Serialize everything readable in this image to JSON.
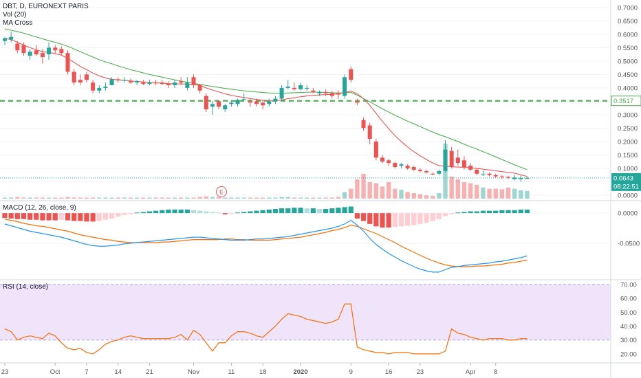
{
  "header": {
    "symbol_line": "DBT, D, EURONEXT PARIS",
    "vol_label": "Vol (20)",
    "ma_label": "MA Cross"
  },
  "price_badges": {
    "level": "0.3517",
    "last": "0.0643",
    "countdown": "08:22:51"
  },
  "event_marker": "E",
  "macd_label": "MACD (12, 26, close, 9)",
  "rsi_label": "RSI (14, close)",
  "colors": {
    "up": "#26a69a",
    "down": "#ef5350",
    "ma_fast": "#ef5350",
    "ma_slow": "#4caf50",
    "macd": "#2196f3",
    "signal": "#ff6d00",
    "rsi": "#ff6d00",
    "rsi_band": "#e8d9f7",
    "level_line": "#4caf50"
  },
  "chart_data": [
    {
      "type": "candlestick",
      "title": "DBT, D, EURONEXT PARIS",
      "y_axis_ticks": [
        "0.7000",
        "0.6500",
        "0.6000",
        "0.5500",
        "0.5000",
        "0.4500",
        "0.4000",
        "0.3500",
        "0.3000",
        "0.2500",
        "0.2000",
        "0.1500",
        "0.1000",
        "0.0500",
        "0.0000"
      ],
      "ylim": [
        0,
        0.72
      ],
      "x_ticks": [
        "23",
        "Oct",
        "7",
        "14",
        "21",
        "Nov",
        "11",
        "18",
        "2020",
        "9",
        "16",
        "23",
        "Apr",
        "8"
      ],
      "ohlc": [
        [
          0.575,
          0.59,
          0.56,
          0.585
        ],
        [
          0.58,
          0.61,
          0.57,
          0.59
        ],
        [
          0.565,
          0.575,
          0.53,
          0.54
        ],
        [
          0.56,
          0.57,
          0.52,
          0.53
        ],
        [
          0.52,
          0.545,
          0.505,
          0.535
        ],
        [
          0.54,
          0.56,
          0.52,
          0.525
        ],
        [
          0.53,
          0.545,
          0.49,
          0.515
        ],
        [
          0.525,
          0.57,
          0.505,
          0.55
        ],
        [
          0.55,
          0.56,
          0.53,
          0.54
        ],
        [
          0.545,
          0.555,
          0.52,
          0.53
        ],
        [
          0.53,
          0.54,
          0.45,
          0.46
        ],
        [
          0.46,
          0.47,
          0.41,
          0.42
        ],
        [
          0.43,
          0.45,
          0.41,
          0.42
        ],
        [
          0.45,
          0.46,
          0.42,
          0.43
        ],
        [
          0.42,
          0.43,
          0.38,
          0.39
        ],
        [
          0.39,
          0.41,
          0.38,
          0.4
        ],
        [
          0.4,
          0.42,
          0.39,
          0.405
        ],
        [
          0.41,
          0.44,
          0.41,
          0.432
        ],
        [
          0.432,
          0.44,
          0.42,
          0.428
        ],
        [
          0.43,
          0.44,
          0.42,
          0.43
        ],
        [
          0.425,
          0.435,
          0.415,
          0.42
        ],
        [
          0.42,
          0.43,
          0.41,
          0.425
        ],
        [
          0.42,
          0.43,
          0.41,
          0.415
        ],
        [
          0.415,
          0.43,
          0.41,
          0.42
        ],
        [
          0.42,
          0.43,
          0.41,
          0.418
        ],
        [
          0.42,
          0.43,
          0.41,
          0.415
        ],
        [
          0.415,
          0.425,
          0.4,
          0.41
        ],
        [
          0.41,
          0.43,
          0.4,
          0.42
        ],
        [
          0.425,
          0.44,
          0.41,
          0.42
        ],
        [
          0.4,
          0.44,
          0.39,
          0.42
        ],
        [
          0.44,
          0.45,
          0.4,
          0.41
        ],
        [
          0.41,
          0.415,
          0.38,
          0.39
        ],
        [
          0.37,
          0.38,
          0.31,
          0.32
        ],
        [
          0.33,
          0.35,
          0.3,
          0.34
        ],
        [
          0.35,
          0.355,
          0.32,
          0.33
        ],
        [
          0.32,
          0.34,
          0.31,
          0.335
        ],
        [
          0.34,
          0.35,
          0.33,
          0.345
        ],
        [
          0.34,
          0.36,
          0.33,
          0.355
        ],
        [
          0.355,
          0.38,
          0.35,
          0.358
        ],
        [
          0.35,
          0.36,
          0.33,
          0.345
        ],
        [
          0.35,
          0.36,
          0.33,
          0.34
        ],
        [
          0.345,
          0.355,
          0.32,
          0.335
        ],
        [
          0.34,
          0.36,
          0.33,
          0.35
        ],
        [
          0.35,
          0.37,
          0.34,
          0.36
        ],
        [
          0.36,
          0.41,
          0.35,
          0.4
        ],
        [
          0.4,
          0.43,
          0.395,
          0.405
        ],
        [
          0.4,
          0.42,
          0.39,
          0.395
        ],
        [
          0.395,
          0.42,
          0.39,
          0.41
        ],
        [
          0.4,
          0.41,
          0.39,
          0.4
        ],
        [
          0.39,
          0.4,
          0.38,
          0.385
        ],
        [
          0.38,
          0.39,
          0.37,
          0.385
        ],
        [
          0.385,
          0.395,
          0.37,
          0.38
        ],
        [
          0.38,
          0.39,
          0.36,
          0.37
        ],
        [
          0.38,
          0.39,
          0.36,
          0.375
        ],
        [
          0.37,
          0.45,
          0.36,
          0.44
        ],
        [
          0.47,
          0.48,
          0.42,
          0.43
        ],
        [
          0.35,
          0.36,
          0.335,
          0.345
        ],
        [
          0.28,
          0.29,
          0.24,
          0.25
        ],
        [
          0.26,
          0.27,
          0.19,
          0.21
        ],
        [
          0.2,
          0.21,
          0.13,
          0.14
        ],
        [
          0.14,
          0.15,
          0.12,
          0.125
        ],
        [
          0.13,
          0.135,
          0.11,
          0.12
        ],
        [
          0.12,
          0.125,
          0.1,
          0.105
        ],
        [
          0.11,
          0.12,
          0.1,
          0.115
        ],
        [
          0.11,
          0.115,
          0.095,
          0.1
        ],
        [
          0.105,
          0.11,
          0.09,
          0.095
        ],
        [
          0.095,
          0.1,
          0.085,
          0.09
        ],
        [
          0.09,
          0.095,
          0.08,
          0.085
        ],
        [
          0.08,
          0.085,
          0.075,
          0.078
        ],
        [
          0.08,
          0.095,
          0.075,
          0.09
        ],
        [
          0.09,
          0.205,
          0.085,
          0.17
        ],
        [
          0.165,
          0.18,
          0.1,
          0.105
        ],
        [
          0.14,
          0.17,
          0.11,
          0.12
        ],
        [
          0.13,
          0.145,
          0.095,
          0.105
        ],
        [
          0.11,
          0.12,
          0.09,
          0.095
        ],
        [
          0.095,
          0.1,
          0.075,
          0.08
        ],
        [
          0.078,
          0.092,
          0.072,
          0.078
        ],
        [
          0.08,
          0.085,
          0.07,
          0.075
        ],
        [
          0.075,
          0.08,
          0.065,
          0.07
        ],
        [
          0.07,
          0.075,
          0.06,
          0.067
        ],
        [
          0.068,
          0.072,
          0.06,
          0.065
        ],
        [
          0.06,
          0.075,
          0.055,
          0.066
        ],
        [
          0.06,
          0.075,
          0.05,
          0.064
        ],
        [
          0.062,
          0.07,
          0.06,
          0.064
        ]
      ],
      "volume": [
        0.02,
        0.02,
        0.03,
        0.02,
        0.02,
        0.02,
        0.02,
        0.02,
        0.02,
        0.02,
        0.03,
        0.02,
        0.02,
        0.02,
        0.02,
        0.02,
        0.02,
        0.02,
        0.02,
        0.02,
        0.02,
        0.02,
        0.02,
        0.02,
        0.02,
        0.02,
        0.02,
        0.02,
        0.02,
        0.02,
        0.02,
        0.03,
        0.04,
        0.03,
        0.03,
        0.02,
        0.02,
        0.02,
        0.02,
        0.02,
        0.02,
        0.02,
        0.02,
        0.02,
        0.03,
        0.03,
        0.02,
        0.02,
        0.02,
        0.02,
        0.02,
        0.02,
        0.02,
        0.03,
        0.12,
        0.18,
        0.35,
        0.45,
        0.3,
        0.28,
        0.22,
        0.3,
        0.18,
        0.16,
        0.12,
        0.1,
        0.08,
        0.06,
        0.05,
        0.1,
        1.0,
        0.4,
        0.35,
        0.3,
        0.28,
        0.25,
        0.2,
        0.18,
        0.18,
        0.17,
        0.2,
        0.18,
        0.15,
        0.14
      ],
      "ma_fast": [
        0.585,
        0.58,
        0.57,
        0.56,
        0.55,
        0.542,
        0.535,
        0.532,
        0.528,
        0.522,
        0.51,
        0.495,
        0.48,
        0.468,
        0.455,
        0.445,
        0.437,
        0.432,
        0.43,
        0.428,
        0.426,
        0.424,
        0.422,
        0.42,
        0.419,
        0.418,
        0.416,
        0.415,
        0.415,
        0.414,
        0.413,
        0.41,
        0.4,
        0.392,
        0.385,
        0.378,
        0.372,
        0.368,
        0.364,
        0.36,
        0.357,
        0.354,
        0.352,
        0.352,
        0.355,
        0.36,
        0.363,
        0.367,
        0.37,
        0.372,
        0.374,
        0.375,
        0.376,
        0.378,
        0.383,
        0.388,
        0.378,
        0.36,
        0.335,
        0.305,
        0.275,
        0.248,
        0.222,
        0.2,
        0.18,
        0.162,
        0.147,
        0.133,
        0.12,
        0.11,
        0.108,
        0.106,
        0.105,
        0.104,
        0.102,
        0.1,
        0.097,
        0.094,
        0.091,
        0.088,
        0.085,
        0.082,
        0.076,
        0.07
      ],
      "ma_slow": [
        0.62,
        0.615,
        0.61,
        0.604,
        0.597,
        0.59,
        0.583,
        0.576,
        0.57,
        0.563,
        0.555,
        0.545,
        0.535,
        0.525,
        0.515,
        0.505,
        0.497,
        0.49,
        0.482,
        0.475,
        0.468,
        0.462,
        0.456,
        0.45,
        0.445,
        0.44,
        0.435,
        0.43,
        0.425,
        0.421,
        0.417,
        0.413,
        0.409,
        0.405,
        0.402,
        0.398,
        0.395,
        0.392,
        0.389,
        0.387,
        0.385,
        0.383,
        0.381,
        0.38,
        0.38,
        0.381,
        0.382,
        0.383,
        0.384,
        0.384,
        0.384,
        0.383,
        0.382,
        0.381,
        0.382,
        0.383,
        0.373,
        0.36,
        0.348,
        0.335,
        0.322,
        0.31,
        0.298,
        0.287,
        0.276,
        0.266,
        0.256,
        0.245,
        0.235,
        0.226,
        0.218,
        0.209,
        0.2,
        0.19,
        0.181,
        0.172,
        0.162,
        0.153,
        0.143,
        0.133,
        0.123,
        0.113,
        0.104,
        0.095
      ],
      "level": 0.3517,
      "last": 0.0643
    },
    {
      "type": "bar+line",
      "title": "MACD (12, 26, close, 9)",
      "y_axis_ticks": [
        "0.0000",
        "-0.0500"
      ],
      "ylim": [
        -0.105,
        0.015
      ],
      "histogram": [
        -0.008,
        -0.009,
        -0.01,
        -0.01,
        -0.011,
        -0.011,
        -0.012,
        -0.012,
        -0.012,
        -0.011,
        -0.012,
        -0.013,
        -0.013,
        -0.014,
        -0.014,
        -0.013,
        -0.011,
        -0.009,
        -0.006,
        -0.003,
        -0.002,
        0.001,
        0.002,
        0.003,
        0.004,
        0.005,
        0.006,
        0.006,
        0.006,
        0.006,
        0.005,
        0.004,
        0.003,
        0.002,
        0.001,
        -0.002,
        -0.001,
        0.001,
        0.002,
        0.003,
        0.004,
        0.005,
        0.006,
        0.007,
        0.008,
        0.008,
        0.009,
        0.009,
        0.008,
        0.008,
        0.007,
        0.007,
        0.008,
        0.009,
        0.01,
        0.011,
        -0.009,
        -0.013,
        -0.018,
        -0.022,
        -0.024,
        -0.024,
        -0.023,
        -0.022,
        -0.021,
        -0.02,
        -0.018,
        -0.016,
        -0.013,
        -0.01,
        -0.005,
        -0.002,
        0.001,
        0.002,
        0.003,
        0.003,
        0.004,
        0.004,
        0.004,
        0.005,
        0.005,
        0.005,
        0.006,
        0.006
      ],
      "macd": [
        -0.018,
        -0.021,
        -0.024,
        -0.027,
        -0.03,
        -0.032,
        -0.034,
        -0.036,
        -0.038,
        -0.04,
        -0.043,
        -0.046,
        -0.049,
        -0.052,
        -0.054,
        -0.055,
        -0.055,
        -0.054,
        -0.053,
        -0.051,
        -0.05,
        -0.049,
        -0.048,
        -0.047,
        -0.046,
        -0.045,
        -0.044,
        -0.043,
        -0.042,
        -0.041,
        -0.04,
        -0.04,
        -0.041,
        -0.042,
        -0.043,
        -0.044,
        -0.045,
        -0.045,
        -0.045,
        -0.044,
        -0.043,
        -0.043,
        -0.042,
        -0.041,
        -0.04,
        -0.039,
        -0.037,
        -0.035,
        -0.033,
        -0.031,
        -0.029,
        -0.027,
        -0.025,
        -0.022,
        -0.018,
        -0.012,
        -0.02,
        -0.03,
        -0.042,
        -0.052,
        -0.06,
        -0.067,
        -0.073,
        -0.079,
        -0.084,
        -0.089,
        -0.093,
        -0.096,
        -0.098,
        -0.098,
        -0.094,
        -0.09,
        -0.089,
        -0.087,
        -0.086,
        -0.085,
        -0.084,
        -0.083,
        -0.081,
        -0.08,
        -0.078,
        -0.076,
        -0.074,
        -0.071
      ],
      "signal": [
        -0.01,
        -0.012,
        -0.014,
        -0.017,
        -0.019,
        -0.021,
        -0.022,
        -0.024,
        -0.026,
        -0.028,
        -0.03,
        -0.033,
        -0.036,
        -0.038,
        -0.04,
        -0.042,
        -0.044,
        -0.045,
        -0.047,
        -0.048,
        -0.049,
        -0.049,
        -0.049,
        -0.049,
        -0.049,
        -0.048,
        -0.048,
        -0.047,
        -0.046,
        -0.045,
        -0.044,
        -0.044,
        -0.044,
        -0.044,
        -0.044,
        -0.043,
        -0.043,
        -0.044,
        -0.044,
        -0.045,
        -0.045,
        -0.045,
        -0.045,
        -0.044,
        -0.043,
        -0.042,
        -0.041,
        -0.04,
        -0.038,
        -0.036,
        -0.034,
        -0.032,
        -0.029,
        -0.027,
        -0.024,
        -0.02,
        -0.022,
        -0.026,
        -0.03,
        -0.034,
        -0.039,
        -0.044,
        -0.049,
        -0.055,
        -0.06,
        -0.065,
        -0.07,
        -0.075,
        -0.079,
        -0.083,
        -0.086,
        -0.088,
        -0.089,
        -0.089,
        -0.089,
        -0.088,
        -0.088,
        -0.087,
        -0.086,
        -0.085,
        -0.083,
        -0.082,
        -0.08,
        -0.078
      ]
    },
    {
      "type": "line",
      "title": "RSI (14, close)",
      "y_axis_ticks": [
        "70.00",
        "60.00",
        "50.00",
        "40.00",
        "30.00",
        "20.00"
      ],
      "ylim": [
        15,
        72
      ],
      "band": [
        30,
        70
      ],
      "values": [
        38,
        36,
        30,
        32,
        33,
        32,
        31,
        35,
        33,
        28,
        24,
        23,
        24,
        21,
        20,
        23,
        27,
        29,
        30,
        32,
        33,
        32,
        31,
        31,
        31,
        31,
        31,
        32,
        34,
        30,
        37,
        34,
        28,
        22,
        28,
        28,
        33,
        36,
        36,
        35,
        33,
        32,
        36,
        40,
        45,
        49,
        48,
        47,
        45,
        44,
        43,
        42,
        43,
        45,
        56,
        56,
        25,
        23,
        22,
        21,
        21,
        20,
        21,
        21,
        21,
        20,
        20,
        20,
        20,
        20,
        22,
        38,
        35,
        34,
        32,
        31,
        30,
        31,
        31,
        31,
        30,
        30,
        31,
        31
      ]
    }
  ]
}
